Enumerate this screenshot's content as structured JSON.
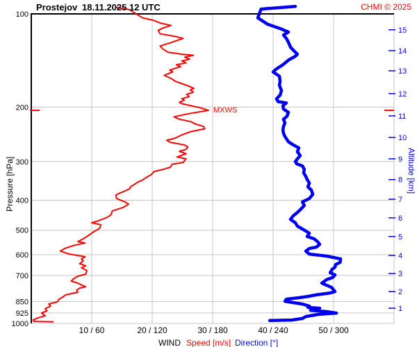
{
  "header": {
    "station": "Prostejov",
    "datetime": "18.11.2025 12 UTC",
    "copyright": "CHMI © 2025"
  },
  "colors": {
    "speed": "#ff0000",
    "direction": "#0000ee",
    "grid": "#c4c4c4",
    "frame": "#000000",
    "background": "#ffffff"
  },
  "chart_data": {
    "type": "line",
    "title": "Prostejov 18.11.2025 12 UTC",
    "grid": true,
    "y_axis": {
      "label": "Pressure [hPa]",
      "scale": "log",
      "range": [
        100,
        1000
      ],
      "ticks": [
        100,
        200,
        300,
        400,
        500,
        600,
        700,
        850,
        925,
        1000
      ]
    },
    "y2_axis": {
      "label": "Altitude [km]",
      "ticks_km_hPa": [
        [
          15,
          112.6
        ],
        [
          14,
          131.5
        ],
        [
          13,
          152.7
        ],
        [
          12,
          181
        ],
        [
          11,
          213.6
        ],
        [
          10,
          250.7
        ],
        [
          9,
          294
        ],
        [
          8,
          343
        ],
        [
          7,
          397
        ],
        [
          6,
          456
        ],
        [
          5,
          524
        ],
        [
          4,
          603
        ],
        [
          3,
          690
        ],
        [
          2,
          789
        ],
        [
          1,
          893
        ]
      ]
    },
    "x_axis": {
      "label": "WIND",
      "speed_label": "Speed [m/s]",
      "direction_label": "Direction [°]",
      "speed_range": [
        0,
        60
      ],
      "direction_range": [
        0,
        360
      ],
      "speed_ticks": [
        10,
        20,
        30,
        40,
        50
      ],
      "tick_labels": [
        "10 / 60",
        "20 / 120",
        "30 / 180",
        "40 / 240",
        "50 / 300"
      ]
    },
    "annotations": {
      "mxws": {
        "label": "MXWS",
        "pressure_hPa": 205,
        "speed_mps": 29.3
      }
    },
    "series": [
      {
        "name": "Wind speed",
        "units": "m/s",
        "color": "#ff0000",
        "points_pressure_value": [
          [
            95.3,
            14.0
          ],
          [
            96.8,
            16.2
          ],
          [
            103,
            18.4
          ],
          [
            105,
            20.3
          ],
          [
            107,
            21.3
          ],
          [
            109,
            23.1
          ],
          [
            111,
            21.8
          ],
          [
            113,
            21.0
          ],
          [
            116,
            21.3
          ],
          [
            118,
            23.6
          ],
          [
            120,
            25.1
          ],
          [
            124,
            23.0
          ],
          [
            127,
            21.3
          ],
          [
            130,
            21.8
          ],
          [
            133,
            22.6
          ],
          [
            135,
            24.9
          ],
          [
            136,
            26.8
          ],
          [
            138,
            25.4
          ],
          [
            140,
            26.2
          ],
          [
            142,
            24.9
          ],
          [
            144,
            25.6
          ],
          [
            146,
            24.0
          ],
          [
            148,
            24.7
          ],
          [
            152,
            22.9
          ],
          [
            154,
            23.4
          ],
          [
            158,
            22.0
          ],
          [
            162,
            23.2
          ],
          [
            165,
            23.8
          ],
          [
            168,
            24.9
          ],
          [
            171,
            26.0
          ],
          [
            174,
            26.9
          ],
          [
            176,
            26.3
          ],
          [
            179,
            26.8
          ],
          [
            182,
            25.7
          ],
          [
            185,
            26.1
          ],
          [
            188,
            24.9
          ],
          [
            190,
            25.3
          ],
          [
            193,
            24.5
          ],
          [
            195,
            24.9
          ],
          [
            201,
            27.9
          ],
          [
            205,
            29.3
          ],
          [
            210,
            26.1
          ],
          [
            215,
            23.6
          ],
          [
            219,
            24.5
          ],
          [
            223,
            26.4
          ],
          [
            227,
            27.2
          ],
          [
            231,
            28.5
          ],
          [
            235,
            28.7
          ],
          [
            240,
            26.4
          ],
          [
            246,
            24.9
          ],
          [
            252,
            23.8
          ],
          [
            256,
            22.4
          ],
          [
            260,
            23.0
          ],
          [
            265,
            25.3
          ],
          [
            269,
            25.9
          ],
          [
            274,
            25.6
          ],
          [
            278,
            24.5
          ],
          [
            283,
            25.6
          ],
          [
            290,
            24.1
          ],
          [
            294,
            25.6
          ],
          [
            302,
            25.1
          ],
          [
            306,
            23.3
          ],
          [
            313,
            23.0
          ],
          [
            318,
            21.8
          ],
          [
            323,
            20.3
          ],
          [
            330,
            19.9
          ],
          [
            338,
            19.0
          ],
          [
            344,
            18.4
          ],
          [
            350,
            17.6
          ],
          [
            356,
            17.0
          ],
          [
            362,
            16.4
          ],
          [
            367,
            16.3
          ],
          [
            375,
            15.3
          ],
          [
            381,
            14.4
          ],
          [
            385,
            14.0
          ],
          [
            395,
            14.1
          ],
          [
            405,
            15.5
          ],
          [
            412,
            16.1
          ],
          [
            422,
            15.2
          ],
          [
            433,
            13.4
          ],
          [
            445,
            13.2
          ],
          [
            454,
            12.6
          ],
          [
            466,
            11.1
          ],
          [
            473,
            10.0
          ],
          [
            480,
            11.5
          ],
          [
            493,
            11.3
          ],
          [
            506,
            10.3
          ],
          [
            519,
            9.5
          ],
          [
            533,
            8.6
          ],
          [
            544,
            7.7
          ],
          [
            550,
            8.9
          ],
          [
            560,
            7.0
          ],
          [
            572,
            5.6
          ],
          [
            584,
            4.8
          ],
          [
            597,
            6.3
          ],
          [
            609,
            8.9
          ],
          [
            619,
            8.3
          ],
          [
            628,
            8.6
          ],
          [
            641,
            8.0
          ],
          [
            651,
            9.0
          ],
          [
            661,
            8.3
          ],
          [
            675,
            9.2
          ],
          [
            693,
            9.0
          ],
          [
            704,
            7.7
          ],
          [
            715,
            7.1
          ],
          [
            730,
            6.6
          ],
          [
            741,
            7.7
          ],
          [
            753,
            8.4
          ],
          [
            761,
            9.0
          ],
          [
            769,
            8.0
          ],
          [
            781,
            7.5
          ],
          [
            793,
            7.7
          ],
          [
            809,
            5.7
          ],
          [
            822,
            5.2
          ],
          [
            835,
            4.6
          ],
          [
            852,
            4.3
          ],
          [
            866,
            2.9
          ],
          [
            879,
            3.2
          ],
          [
            897,
            2.3
          ],
          [
            911,
            2.6
          ],
          [
            926,
            1.7
          ],
          [
            945,
            2.3
          ],
          [
            960,
            1.1
          ],
          [
            975,
            0.3
          ],
          [
            985,
            0.4
          ],
          [
            988,
            3.7
          ]
        ]
      },
      {
        "name": "Wind direction",
        "units": "deg",
        "color": "#0000ee",
        "points_pressure_value": [
          [
            94.6,
            262
          ],
          [
            96.5,
            228
          ],
          [
            103,
            224.8
          ],
          [
            108,
            234.5
          ],
          [
            111.5,
            246.9
          ],
          [
            114.5,
            255.2
          ],
          [
            117,
            250.3
          ],
          [
            120,
            253.1
          ],
          [
            123.5,
            255.2
          ],
          [
            128,
            257.2
          ],
          [
            131,
            260
          ],
          [
            135,
            264.1
          ],
          [
            137,
            262.1
          ],
          [
            141,
            255.2
          ],
          [
            146,
            249.7
          ],
          [
            151,
            242.8
          ],
          [
            154,
            240
          ],
          [
            159,
            246.2
          ],
          [
            165,
            246.9
          ],
          [
            170,
            246.2
          ],
          [
            177,
            248.3
          ],
          [
            183,
            246.9
          ],
          [
            188,
            243.4
          ],
          [
            192,
            244.8
          ],
          [
            194,
            253.1
          ],
          [
            198,
            249.7
          ],
          [
            203,
            250.3
          ],
          [
            208,
            255.2
          ],
          [
            214,
            253.8
          ],
          [
            219,
            250.3
          ],
          [
            225,
            251.7
          ],
          [
            231,
            250.3
          ],
          [
            237,
            249.7
          ],
          [
            243,
            250.3
          ],
          [
            249,
            251.7
          ],
          [
            259,
            255.2
          ],
          [
            265,
            260
          ],
          [
            271,
            265.5
          ],
          [
            279,
            264.1
          ],
          [
            287,
            266.9
          ],
          [
            294,
            264.1
          ],
          [
            300,
            262.1
          ],
          [
            305,
            263.4
          ],
          [
            310,
            269
          ],
          [
            318,
            271
          ],
          [
            326,
            270.3
          ],
          [
            335,
            272.4
          ],
          [
            343,
            273.8
          ],
          [
            352,
            275.9
          ],
          [
            362,
            274.5
          ],
          [
            371,
            277.9
          ],
          [
            383,
            279.3
          ],
          [
            395,
            275.9
          ],
          [
            405,
            269
          ],
          [
            416,
            271
          ],
          [
            427,
            267.6
          ],
          [
            438,
            264.1
          ],
          [
            449,
            260
          ],
          [
            461,
            257.2
          ],
          [
            473,
            262.1
          ],
          [
            485,
            264.1
          ],
          [
            498,
            270.3
          ],
          [
            511,
            275.9
          ],
          [
            524,
            273.8
          ],
          [
            533,
            280.7
          ],
          [
            544,
            284.1
          ],
          [
            555,
            286.2
          ],
          [
            567,
            282.8
          ],
          [
            573,
            275.9
          ],
          [
            584,
            272.4
          ],
          [
            597,
            275.9
          ],
          [
            606,
            293.1
          ],
          [
            619,
            307
          ],
          [
            635,
            306.5
          ],
          [
            645,
            302.1
          ],
          [
            658,
            301.4
          ],
          [
            668,
            298.6
          ],
          [
            686,
            296.6
          ],
          [
            697,
            301.4
          ],
          [
            711,
            299
          ],
          [
            722,
            293.1
          ],
          [
            741,
            288.3
          ],
          [
            753,
            293.1
          ],
          [
            765,
            297.9
          ],
          [
            789,
            301.4
          ],
          [
            797,
            296.6
          ],
          [
            809,
            282.8
          ],
          [
            818,
            274.5
          ],
          [
            826,
            265.5
          ],
          [
            835,
            253.1
          ],
          [
            848,
            251.7
          ],
          [
            866,
            269
          ],
          [
            879,
            275.9
          ],
          [
            888,
            274.5
          ],
          [
            893,
            286.2
          ],
          [
            907,
            277.2
          ],
          [
            916,
            293.1
          ],
          [
            926,
            302.8
          ],
          [
            935,
            284.8
          ],
          [
            950,
            272.4
          ],
          [
            964,
            269
          ],
          [
            975,
            258.6
          ],
          [
            979,
            236.6
          ]
        ]
      }
    ]
  }
}
